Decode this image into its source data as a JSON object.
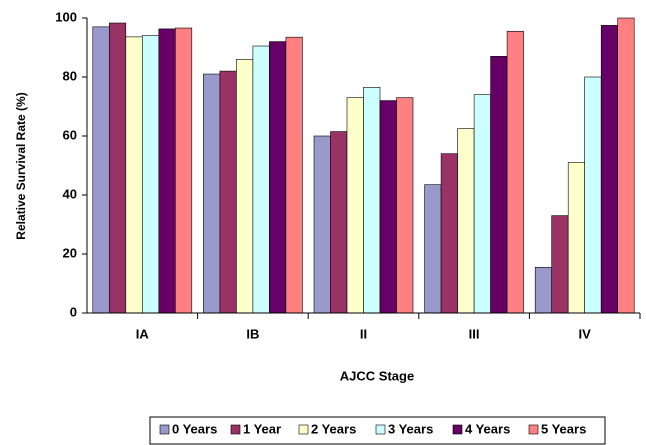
{
  "chart_data": {
    "type": "bar",
    "xlabel": "AJCC Stage",
    "ylabel": "Relative Survival Rate (%)",
    "categories": [
      "IA",
      "IB",
      "II",
      "III",
      "IV"
    ],
    "series": [
      {
        "name": "0 Years",
        "color": "#9999cc",
        "values": [
          97,
          81,
          60,
          43.5,
          15.5
        ]
      },
      {
        "name": "1 Year",
        "color": "#993366",
        "values": [
          98.3,
          82,
          61.5,
          54,
          33
        ]
      },
      {
        "name": "2 Years",
        "color": "#ffffcc",
        "values": [
          93.6,
          86,
          73,
          62.5,
          51
        ]
      },
      {
        "name": "3 Years",
        "color": "#ccffff",
        "values": [
          94,
          90.5,
          76.5,
          74,
          80
        ]
      },
      {
        "name": "4 Years",
        "color": "#660066",
        "values": [
          96.3,
          92,
          72,
          87,
          97.5
        ]
      },
      {
        "name": "5 Years",
        "color": "#ff8080",
        "values": [
          96.6,
          93.5,
          73,
          95.5,
          100
        ]
      }
    ],
    "ylim": [
      0,
      100
    ],
    "yticks": [
      0,
      20,
      40,
      60,
      80,
      100
    ],
    "grid": false,
    "legend": "bottom"
  }
}
